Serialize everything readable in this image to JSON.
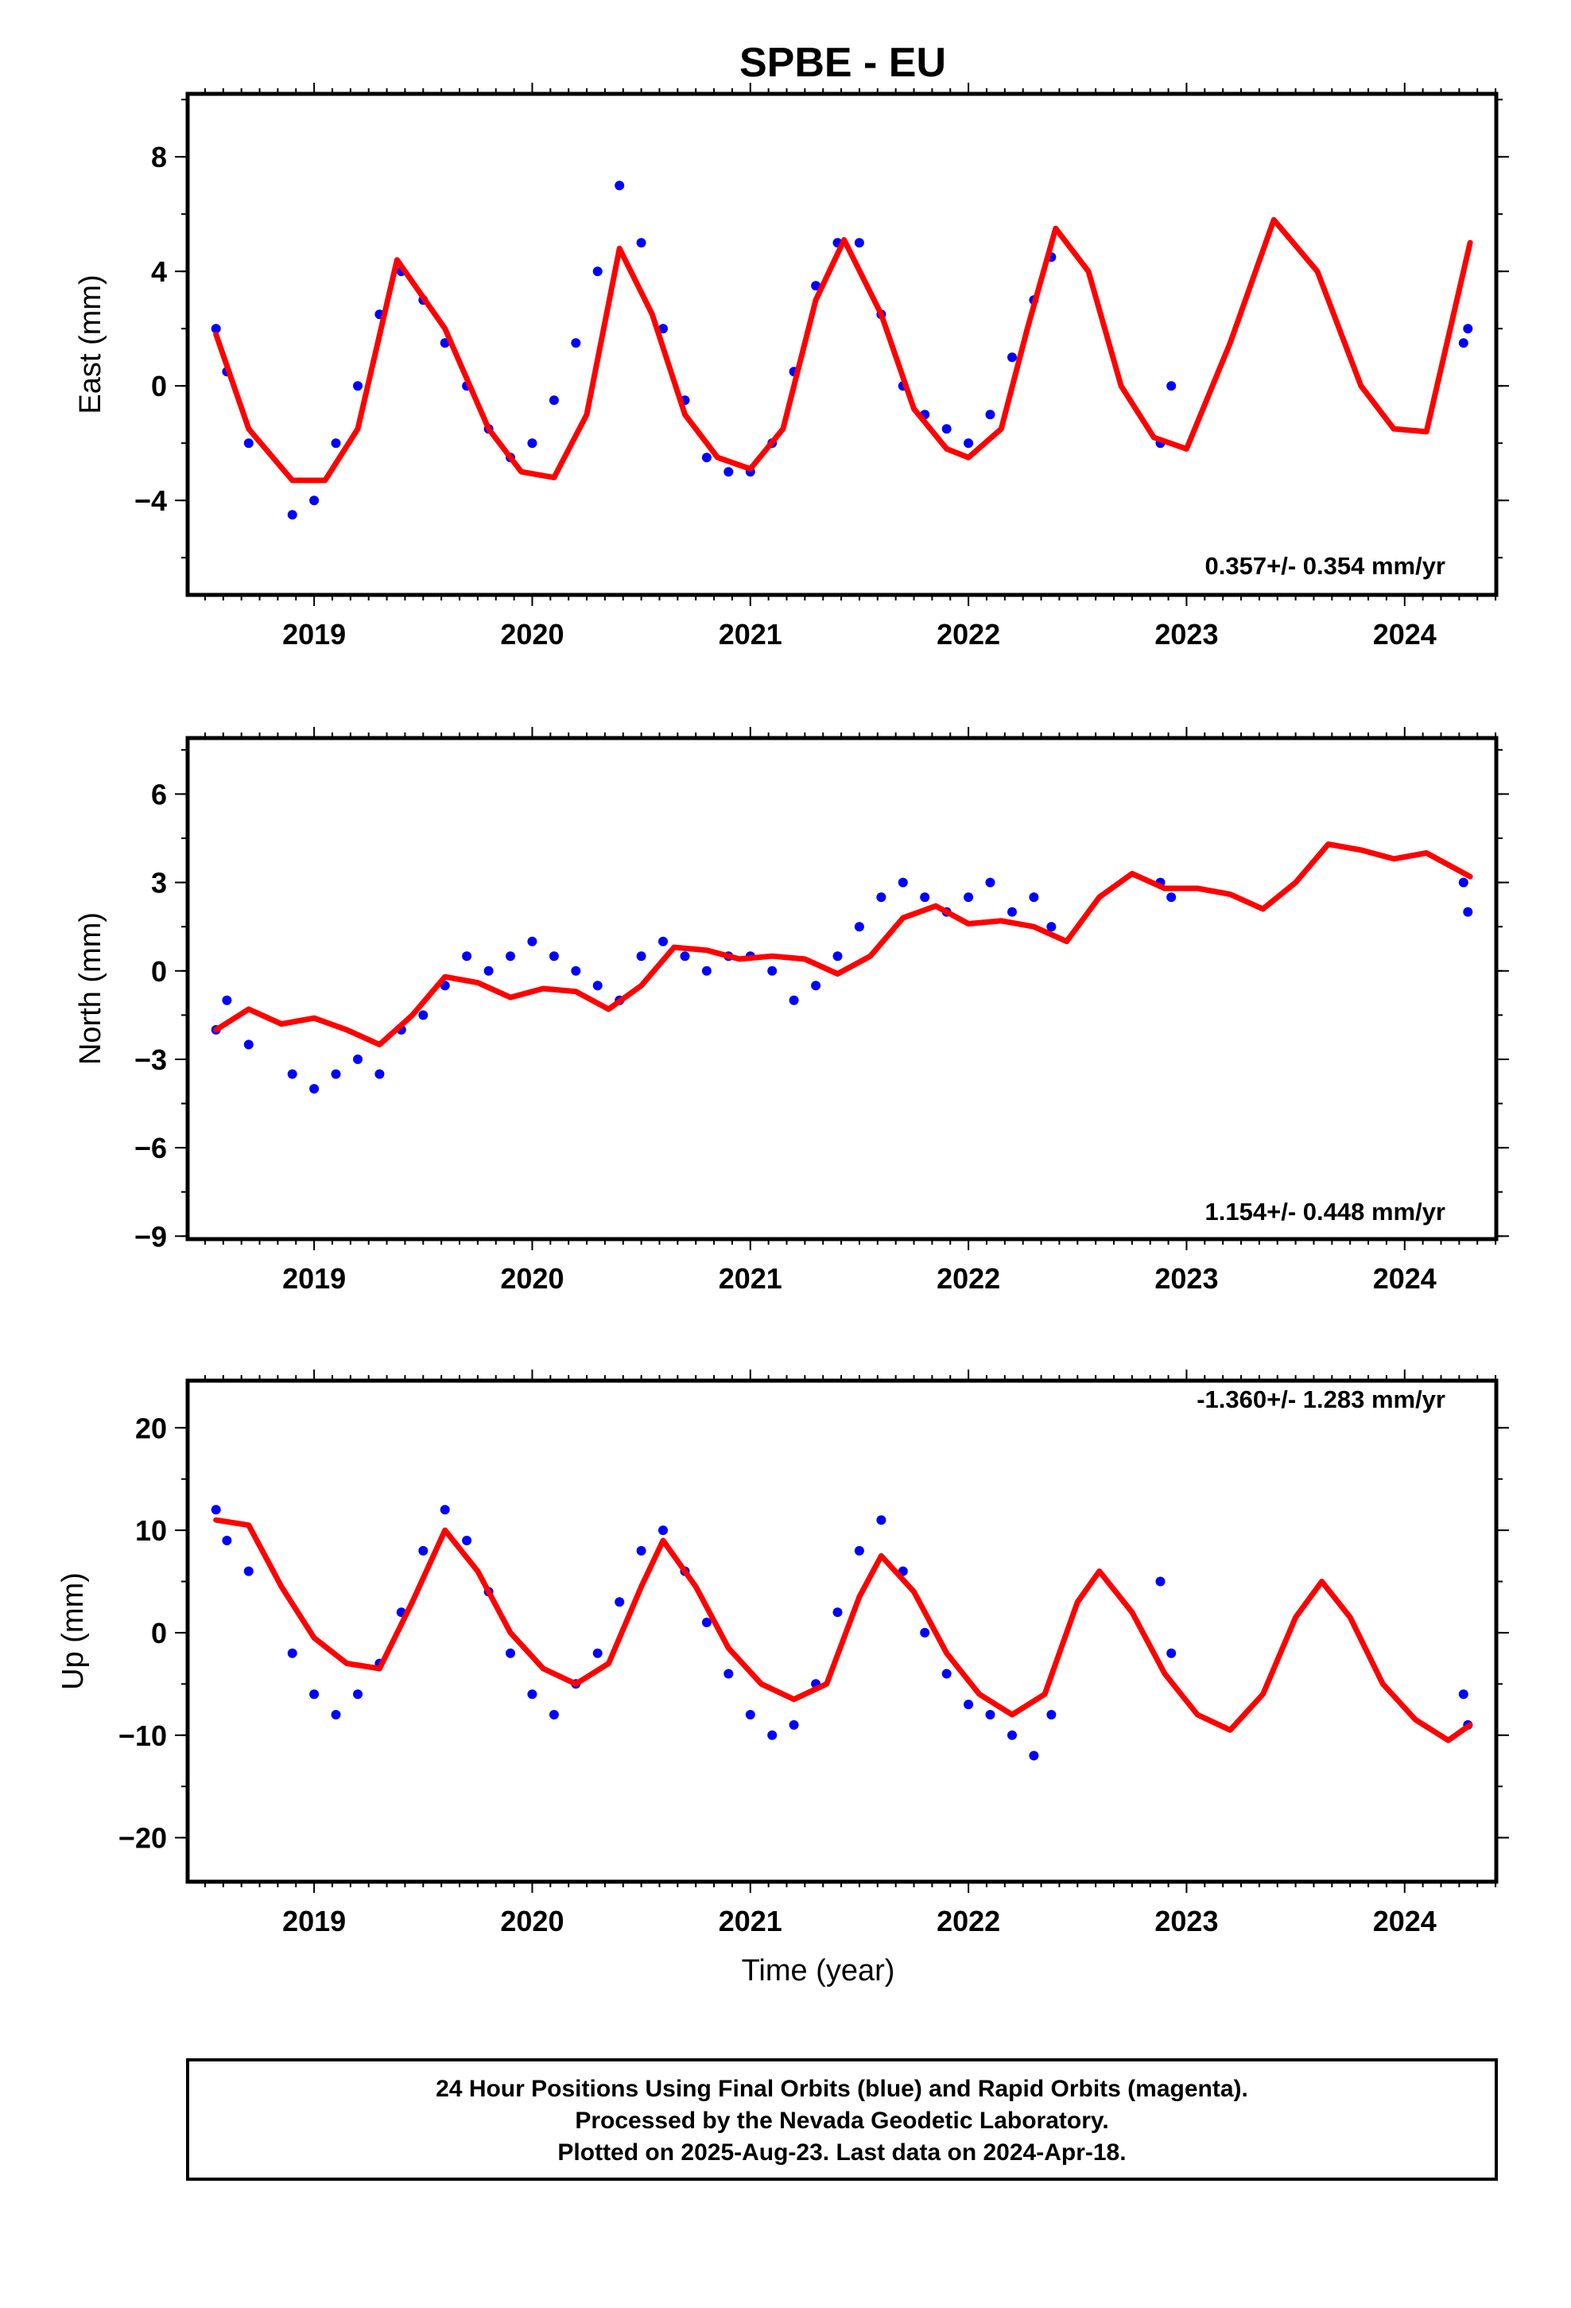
{
  "title": "SPBE - EU",
  "colors": {
    "final_points": "#0000ff",
    "model_curve": "#ff0000",
    "frame": "#000000"
  },
  "footer": {
    "line1": "24 Hour Positions Using Final Orbits (blue) and Rapid Orbits (magenta).",
    "line2": "Processed by the Nevada Geodetic Laboratory.",
    "line3": "Plotted on 2025-Aug-23. Last data on 2024-Apr-18."
  },
  "chart_data": [
    {
      "type": "scatter",
      "ylabel": "East (mm)",
      "xlabel": "",
      "rate_text": "0.357+/- 0.354 mm/yr",
      "xlim": [
        2018.42,
        2024.42
      ],
      "ylim": [
        -7.3,
        10.2
      ],
      "xticks": [
        2019,
        2020,
        2021,
        2022,
        2023,
        2024
      ],
      "yticks": [
        -4,
        0,
        4,
        8
      ],
      "ytick_labels": [
        "−4",
        "0",
        "4",
        "8"
      ],
      "series": [
        {
          "kind": "points",
          "x": [
            2018.55,
            2018.6,
            2018.7,
            2018.9,
            2019.0,
            2019.1,
            2019.2,
            2019.3,
            2019.4,
            2019.5,
            2019.6,
            2019.7,
            2019.8,
            2019.9,
            2020.0,
            2020.1,
            2020.2,
            2020.3,
            2020.4,
            2020.5,
            2020.6,
            2020.7,
            2020.8,
            2020.9,
            2021.0,
            2021.1,
            2021.2,
            2021.3,
            2021.4,
            2021.5,
            2021.6,
            2021.7,
            2021.8,
            2021.9,
            2022.0,
            2022.1,
            2022.2,
            2022.3,
            2022.38,
            2022.88,
            2022.93,
            2024.27,
            2024.29
          ],
          "y": [
            2.0,
            0.5,
            -2.0,
            -4.5,
            -4.0,
            -2.0,
            0.0,
            2.5,
            4.0,
            3.0,
            1.5,
            0.0,
            -1.5,
            -2.5,
            -2.0,
            -0.5,
            1.5,
            4.0,
            7.0,
            5.0,
            2.0,
            -0.5,
            -2.5,
            -3.0,
            -3.0,
            -2.0,
            0.5,
            3.5,
            5.0,
            5.0,
            2.5,
            0.0,
            -1.0,
            -1.5,
            -2.0,
            -1.0,
            1.0,
            3.0,
            4.5,
            -2.0,
            0.0,
            1.5,
            2.0
          ]
        },
        {
          "kind": "line",
          "x": [
            2018.55,
            2018.7,
            2018.9,
            2019.05,
            2019.2,
            2019.38,
            2019.6,
            2019.8,
            2019.95,
            2020.1,
            2020.25,
            2020.4,
            2020.55,
            2020.7,
            2020.85,
            2021.0,
            2021.15,
            2021.3,
            2021.43,
            2021.6,
            2021.75,
            2021.9,
            2022.0,
            2022.15,
            2022.27,
            2022.4,
            2022.55,
            2022.7,
            2022.85,
            2023.0,
            2023.2,
            2023.4,
            2023.6,
            2023.8,
            2023.95,
            2024.1,
            2024.3
          ],
          "y": [
            1.8,
            -1.5,
            -3.3,
            -3.3,
            -1.5,
            4.4,
            2.0,
            -1.5,
            -3.0,
            -3.2,
            -1.0,
            4.8,
            2.5,
            -1.0,
            -2.5,
            -2.9,
            -1.5,
            3.0,
            5.1,
            2.5,
            -0.8,
            -2.2,
            -2.5,
            -1.5,
            2.0,
            5.5,
            4.0,
            0.0,
            -1.8,
            -2.2,
            1.5,
            5.8,
            4.0,
            0.0,
            -1.5,
            -1.6,
            5.0
          ]
        }
      ]
    },
    {
      "type": "scatter",
      "ylabel": "North (mm)",
      "xlabel": "",
      "rate_text": "1.154+/- 0.448 mm/yr",
      "xlim": [
        2018.42,
        2024.42
      ],
      "ylim": [
        -9.1,
        7.9
      ],
      "xticks": [
        2019,
        2020,
        2021,
        2022,
        2023,
        2024
      ],
      "yticks": [
        -9,
        -6,
        -3,
        0,
        3,
        6
      ],
      "ytick_labels": [
        "−9",
        "−6",
        "−3",
        "0",
        "3",
        "6"
      ],
      "series": [
        {
          "kind": "points",
          "x": [
            2018.55,
            2018.6,
            2018.7,
            2018.9,
            2019.0,
            2019.1,
            2019.2,
            2019.3,
            2019.4,
            2019.5,
            2019.6,
            2019.7,
            2019.8,
            2019.9,
            2020.0,
            2020.1,
            2020.2,
            2020.3,
            2020.4,
            2020.5,
            2020.6,
            2020.7,
            2020.8,
            2020.9,
            2021.0,
            2021.1,
            2021.2,
            2021.3,
            2021.4,
            2021.5,
            2021.6,
            2021.7,
            2021.8,
            2021.9,
            2022.0,
            2022.1,
            2022.2,
            2022.3,
            2022.38,
            2022.88,
            2022.93,
            2024.27,
            2024.29
          ],
          "y": [
            -2.0,
            -1.0,
            -2.5,
            -3.5,
            -4.0,
            -3.5,
            -3.0,
            -3.5,
            -2.0,
            -1.5,
            -0.5,
            0.5,
            0.0,
            0.5,
            1.0,
            0.5,
            0.0,
            -0.5,
            -1.0,
            0.5,
            1.0,
            0.5,
            0.0,
            0.5,
            0.5,
            0.0,
            -1.0,
            -0.5,
            0.5,
            1.5,
            2.5,
            3.0,
            2.5,
            2.0,
            2.5,
            3.0,
            2.0,
            2.5,
            1.5,
            3.0,
            2.5,
            3.0,
            2.0
          ]
        },
        {
          "kind": "line",
          "x": [
            2018.55,
            2018.7,
            2018.85,
            2019.0,
            2019.15,
            2019.3,
            2019.45,
            2019.6,
            2019.75,
            2019.9,
            2020.05,
            2020.2,
            2020.35,
            2020.5,
            2020.65,
            2020.8,
            2020.95,
            2021.1,
            2021.25,
            2021.4,
            2021.55,
            2021.7,
            2021.85,
            2022.0,
            2022.15,
            2022.3,
            2022.45,
            2022.6,
            2022.75,
            2022.9,
            2023.05,
            2023.2,
            2023.35,
            2023.5,
            2023.65,
            2023.8,
            2023.95,
            2024.1,
            2024.3
          ],
          "y": [
            -2.0,
            -1.3,
            -1.8,
            -1.6,
            -2.0,
            -2.5,
            -1.5,
            -0.2,
            -0.4,
            -0.9,
            -0.6,
            -0.7,
            -1.3,
            -0.5,
            0.8,
            0.7,
            0.4,
            0.5,
            0.4,
            -0.1,
            0.5,
            1.8,
            2.2,
            1.6,
            1.7,
            1.5,
            1.0,
            2.5,
            3.3,
            2.8,
            2.8,
            2.6,
            2.1,
            3.0,
            4.3,
            4.1,
            3.8,
            4.0,
            3.2
          ]
        }
      ]
    },
    {
      "type": "scatter",
      "ylabel": "Up (mm)",
      "xlabel": "Time (year)",
      "rate_text": "-1.360+/- 1.283 mm/yr",
      "xlim": [
        2018.42,
        2024.42
      ],
      "ylim": [
        -24.3,
        24.6
      ],
      "xticks": [
        2019,
        2020,
        2021,
        2022,
        2023,
        2024
      ],
      "yticks": [
        -20,
        -10,
        0,
        10,
        20
      ],
      "ytick_labels": [
        "−20",
        "−10",
        "0",
        "10",
        "20"
      ],
      "series": [
        {
          "kind": "points",
          "x": [
            2018.55,
            2018.6,
            2018.7,
            2018.9,
            2019.0,
            2019.1,
            2019.2,
            2019.3,
            2019.4,
            2019.5,
            2019.6,
            2019.7,
            2019.8,
            2019.9,
            2020.0,
            2020.1,
            2020.2,
            2020.3,
            2020.4,
            2020.5,
            2020.6,
            2020.7,
            2020.8,
            2020.9,
            2021.0,
            2021.1,
            2021.2,
            2021.3,
            2021.4,
            2021.5,
            2021.6,
            2021.7,
            2021.8,
            2021.9,
            2022.0,
            2022.1,
            2022.2,
            2022.3,
            2022.38,
            2022.88,
            2022.93,
            2024.27,
            2024.29
          ],
          "y": [
            12.0,
            9.0,
            6.0,
            -2.0,
            -6.0,
            -8.0,
            -6.0,
            -3.0,
            2.0,
            8.0,
            12.0,
            9.0,
            4.0,
            -2.0,
            -6.0,
            -8.0,
            -5.0,
            -2.0,
            3.0,
            8.0,
            10.0,
            6.0,
            1.0,
            -4.0,
            -8.0,
            -10.0,
            -9.0,
            -5.0,
            2.0,
            8.0,
            11.0,
            6.0,
            0.0,
            -4.0,
            -7.0,
            -8.0,
            -10.0,
            -12.0,
            -8.0,
            5.0,
            -2.0,
            -6.0,
            -9.0
          ]
        },
        {
          "kind": "line",
          "x": [
            2018.55,
            2018.7,
            2018.85,
            2019.0,
            2019.15,
            2019.3,
            2019.45,
            2019.6,
            2019.75,
            2019.9,
            2020.05,
            2020.2,
            2020.35,
            2020.5,
            2020.6,
            2020.75,
            2020.9,
            2021.05,
            2021.2,
            2021.35,
            2021.5,
            2021.6,
            2021.75,
            2021.9,
            2022.05,
            2022.2,
            2022.35,
            2022.5,
            2022.6,
            2022.75,
            2022.9,
            2023.05,
            2023.2,
            2023.35,
            2023.5,
            2023.62,
            2023.75,
            2023.9,
            2024.05,
            2024.2,
            2024.3
          ],
          "y": [
            11.0,
            10.5,
            4.5,
            -0.5,
            -3.0,
            -3.5,
            3.0,
            10.0,
            6.0,
            0.0,
            -3.5,
            -5.0,
            -3.0,
            4.5,
            9.0,
            4.5,
            -1.5,
            -5.0,
            -6.5,
            -5.0,
            3.5,
            7.5,
            4.0,
            -2.0,
            -6.0,
            -8.0,
            -6.0,
            3.0,
            6.0,
            2.0,
            -4.0,
            -8.0,
            -9.5,
            -6.0,
            1.5,
            5.0,
            1.5,
            -5.0,
            -8.5,
            -10.5,
            -9.0
          ]
        }
      ]
    }
  ]
}
